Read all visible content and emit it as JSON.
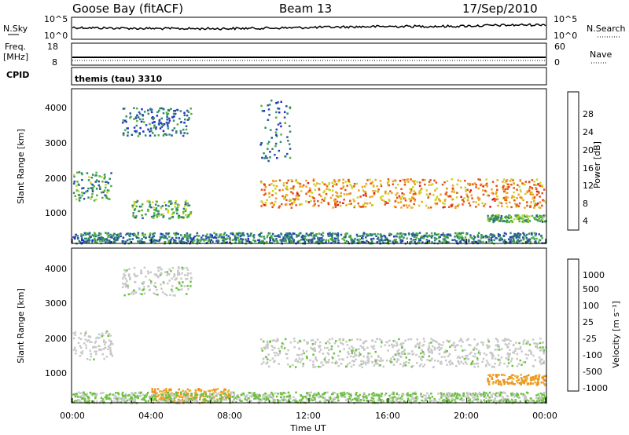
{
  "header": {
    "station": "Goose Bay (fitACF)",
    "beam": "Beam 13",
    "date": "17/Sep/2010"
  },
  "noise_panel": {
    "left_label": "N.Sky",
    "right_label": "N.Search",
    "left_ticks": [
      "10^5",
      "10^0"
    ],
    "right_ticks": [
      "10^5",
      "10^0"
    ]
  },
  "freq_panel": {
    "left_label_1": "Freq.",
    "left_label_2": "[MHz]",
    "right_label": "Nave",
    "left_ticks": [
      "18",
      "8"
    ],
    "right_ticks": [
      "60",
      "0"
    ]
  },
  "cpid_panel": {
    "label": "CPID",
    "text": "themis (tau) 3310"
  },
  "power_panel": {
    "ylabel": "Slant Range [km]",
    "yticks": [
      "4000",
      "3000",
      "2000",
      "1000"
    ],
    "colorbar_label": "Power [dB]",
    "colorbar_ticks": [
      "28",
      "24",
      "20",
      "16",
      "12",
      "8",
      "4"
    ]
  },
  "velocity_panel": {
    "ylabel": "Slant Range [km]",
    "yticks": [
      "4000",
      "3000",
      "2000",
      "1000"
    ],
    "colorbar_label": "Velocity [m s⁻¹]",
    "colorbar_ticks": [
      "1000",
      "500",
      "100",
      "25",
      "-25",
      "-100",
      "-500",
      "-1000"
    ]
  },
  "xaxis": {
    "label": "Time UT",
    "ticks": [
      "00:00",
      "04:00",
      "08:00",
      "12:00",
      "16:00",
      "20:00",
      "00:00"
    ]
  },
  "colors": {
    "power_scale": [
      "#1f2ccc",
      "#2a52a8",
      "#2f8a6a",
      "#4fb23a",
      "#c8d42a",
      "#f0a020",
      "#e85018",
      "#d81818"
    ],
    "velocity_scale": [
      "#d81818",
      "#e85018",
      "#f09020",
      "#c8c8c8",
      "#c8c8c8",
      "#6cc040",
      "#2f8a6a",
      "#1f2ccc"
    ]
  },
  "chart_data": [
    {
      "type": "heatmap",
      "title": "Power [dB]",
      "xlabel": "Time UT",
      "ylabel": "Slant Range [km]",
      "xlim": [
        0,
        24
      ],
      "ylim": [
        180,
        4500
      ],
      "colorbar_range": [
        0,
        30
      ],
      "features": [
        {
          "time_range": [
            0,
            2
          ],
          "range_km": [
            1400,
            2200
          ],
          "power_db": 10
        },
        {
          "time_range": [
            2.5,
            6
          ],
          "range_km": [
            3200,
            4000
          ],
          "power_db": 6
        },
        {
          "time_range": [
            3,
            6
          ],
          "range_km": [
            900,
            1400
          ],
          "power_db": 12
        },
        {
          "time_range": [
            9.5,
            24
          ],
          "range_km": [
            1200,
            2000
          ],
          "power_db": 22
        },
        {
          "time_range": [
            9.5,
            11
          ],
          "range_km": [
            2500,
            4200
          ],
          "power_db": 6
        },
        {
          "time_range": [
            21,
            24
          ],
          "range_km": [
            800,
            1000
          ],
          "power_db": 12
        },
        {
          "time_range": [
            0,
            24
          ],
          "range_km": [
            200,
            500
          ],
          "power_db": 8
        }
      ]
    },
    {
      "type": "heatmap",
      "title": "Velocity [m s⁻¹]",
      "xlabel": "Time UT",
      "ylabel": "Slant Range [km]",
      "xlim": [
        0,
        24
      ],
      "ylim": [
        180,
        4500
      ],
      "colorbar_levels": [
        1000,
        500,
        100,
        25,
        -25,
        -100,
        -500,
        -1000
      ],
      "features": [
        {
          "time_range": [
            0,
            2
          ],
          "range_km": [
            1400,
            2200
          ],
          "velocity": 0
        },
        {
          "time_range": [
            2.5,
            6
          ],
          "range_km": [
            3200,
            4000
          ],
          "velocity": 0
        },
        {
          "time_range": [
            9.5,
            24
          ],
          "range_km": [
            1200,
            2000
          ],
          "velocity": 0
        },
        {
          "time_range": [
            4,
            8
          ],
          "range_km": [
            200,
            600
          ],
          "velocity": -150
        },
        {
          "time_range": [
            21,
            24
          ],
          "range_km": [
            700,
            1000
          ],
          "velocity": -100
        },
        {
          "time_range": [
            0,
            24
          ],
          "range_km": [
            200,
            500
          ],
          "velocity": 80
        }
      ]
    }
  ]
}
